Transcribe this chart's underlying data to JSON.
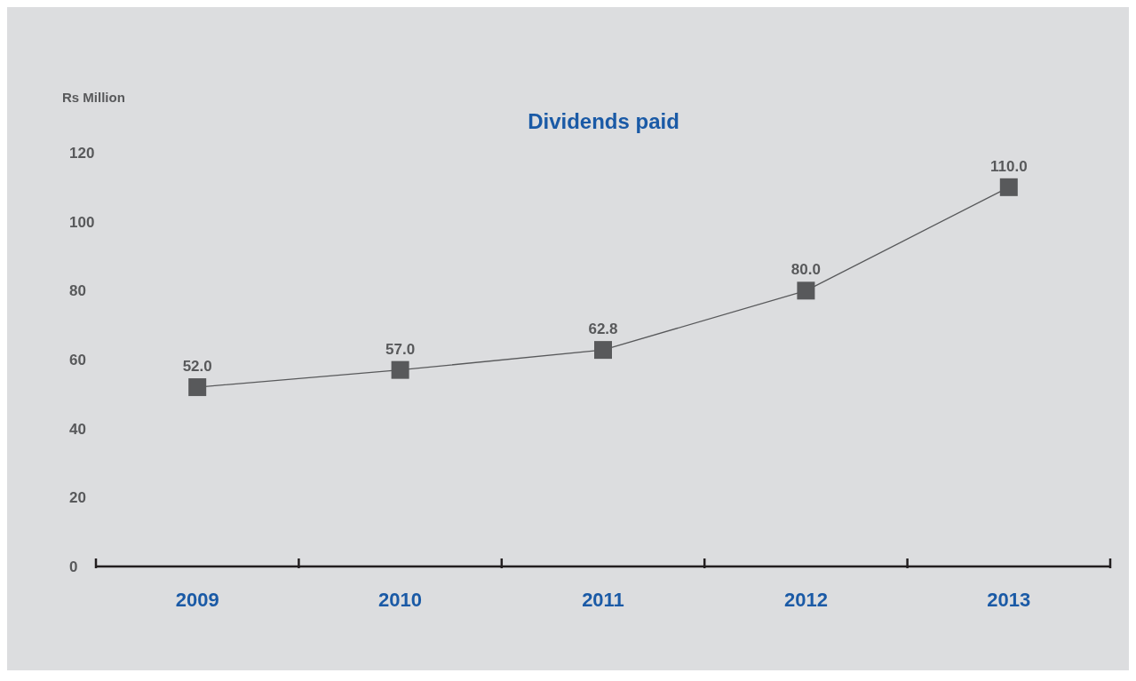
{
  "chart_data": {
    "type": "line",
    "title": "Dividends paid",
    "ylabel": "Rs Million",
    "categories": [
      "2009",
      "2010",
      "2011",
      "2012",
      "2013"
    ],
    "series": [
      {
        "color": "#58595b",
        "values": [
          52,
          57,
          62.8,
          80,
          110
        ],
        "value_labels": [
          "52.0",
          "57.0",
          "62.8",
          "80.0",
          "110.0"
        ]
      }
    ],
    "ylim": [
      0,
      120
    ],
    "yticks": [
      0,
      20,
      40,
      60,
      80,
      100,
      120
    ],
    "marker": "square",
    "line_style": "solid",
    "grid": false
  }
}
